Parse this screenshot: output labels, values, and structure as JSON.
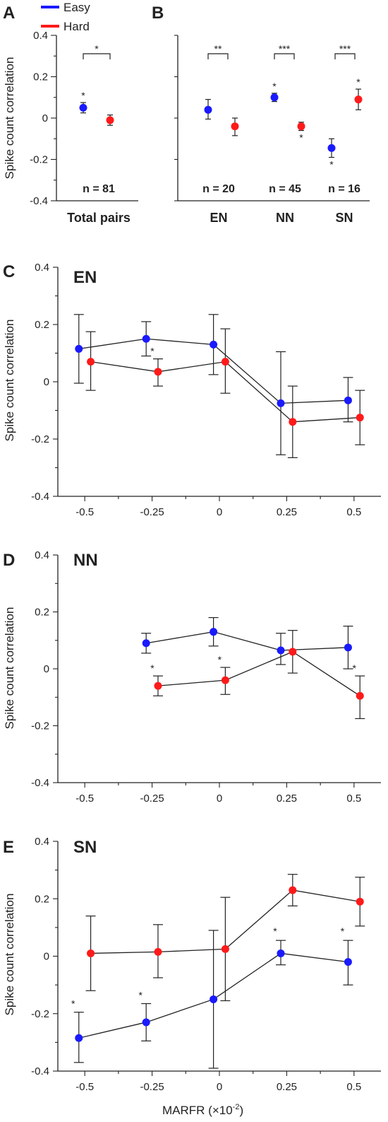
{
  "colors": {
    "easy": "#1a1aff",
    "hard": "#ff1a1a",
    "axis": "#222222"
  },
  "legend": [
    {
      "label": "Easy",
      "color": "#1a1aff"
    },
    {
      "label": "Hard",
      "color": "#ff1a1a"
    }
  ],
  "panels": {
    "A": {
      "letter": "A"
    },
    "B": {
      "letter": "B"
    },
    "C": {
      "letter": "C",
      "title": "EN"
    },
    "D": {
      "letter": "D",
      "title": "NN"
    },
    "E": {
      "letter": "E",
      "title": "SN"
    }
  },
  "chart_data": [
    {
      "id": "A",
      "type": "scatter",
      "ylabel": "Spike count correlation",
      "ylim": [
        -0.4,
        0.4
      ],
      "yticks": [
        "0.4",
        "0.2",
        "0",
        "-0.2",
        "-0.4"
      ],
      "categories": [
        "Total pairs"
      ],
      "n_labels": [
        "n = 81"
      ],
      "significance": [
        "*"
      ],
      "series": [
        {
          "name": "Easy",
          "values": [
            0.05
          ],
          "err_low": [
            0.025
          ],
          "err_high": [
            0.075
          ],
          "marks": [
            [
              "*",
              "above"
            ]
          ]
        },
        {
          "name": "Hard",
          "values": [
            -0.01
          ],
          "err_low": [
            -0.035
          ],
          "err_high": [
            0.015
          ],
          "marks": [
            []
          ]
        }
      ]
    },
    {
      "id": "B",
      "type": "scatter",
      "ylim": [
        -0.4,
        0.4
      ],
      "categories": [
        "EN",
        "NN",
        "SN"
      ],
      "n_labels": [
        "n = 20",
        "n = 45",
        "n = 16"
      ],
      "significance": [
        "**",
        "***",
        "***"
      ],
      "series": [
        {
          "name": "Easy",
          "values": [
            0.04,
            0.1,
            -0.145
          ],
          "err_low": [
            -0.005,
            0.08,
            -0.19
          ],
          "err_high": [
            0.09,
            0.12,
            -0.1
          ],
          "marks": [
            [],
            [
              "*",
              "above"
            ],
            [
              "*",
              "below"
            ]
          ]
        },
        {
          "name": "Hard",
          "values": [
            -0.04,
            -0.04,
            0.09
          ],
          "err_low": [
            -0.085,
            -0.06,
            0.04
          ],
          "err_high": [
            0.0,
            -0.02,
            0.14
          ],
          "marks": [
            [],
            [
              "*",
              "below"
            ],
            [
              "*",
              "above"
            ]
          ]
        }
      ]
    },
    {
      "id": "C",
      "type": "line",
      "ylabel": "Spike count correlation",
      "ylim": [
        -0.4,
        0.4
      ],
      "yticks": [
        "0.4",
        "0.2",
        "0",
        "-0.2",
        "-0.4"
      ],
      "xlim": [
        -0.6,
        0.6
      ],
      "xticks": [
        -0.5,
        -0.25,
        0,
        0.25,
        0.5
      ],
      "xtick_labels": [
        "-0.5",
        "-0.25",
        "0",
        "0.25",
        "0.5"
      ],
      "series": [
        {
          "name": "Easy",
          "x": [
            -0.5,
            -0.25,
            0,
            0.25,
            0.5
          ],
          "y": [
            0.115,
            0.15,
            0.13,
            -0.075,
            -0.065
          ],
          "err_low": [
            -0.005,
            0.09,
            0.025,
            -0.255,
            -0.14
          ],
          "err_high": [
            0.235,
            0.21,
            0.235,
            0.105,
            0.015
          ],
          "stars": [
            0,
            0,
            0,
            0,
            0
          ]
        },
        {
          "name": "Hard",
          "x": [
            -0.5,
            -0.25,
            0,
            0.25,
            0.5
          ],
          "y": [
            0.07,
            0.035,
            0.07,
            -0.14,
            -0.125
          ],
          "err_low": [
            -0.03,
            -0.015,
            -0.04,
            -0.265,
            -0.22
          ],
          "err_high": [
            0.175,
            0.08,
            0.185,
            -0.015,
            -0.03
          ],
          "stars": [
            0,
            1,
            0,
            0,
            0
          ]
        }
      ]
    },
    {
      "id": "D",
      "type": "line",
      "ylabel": "Spike count correlation",
      "ylim": [
        -0.4,
        0.4
      ],
      "yticks": [
        "0.4",
        "0.2",
        "0",
        "-0.2",
        "-0.4"
      ],
      "xlim": [
        -0.6,
        0.6
      ],
      "xticks": [
        -0.5,
        -0.25,
        0,
        0.25,
        0.5
      ],
      "xtick_labels": [
        "-0.5",
        "-0.25",
        "0",
        "0.25",
        "0.5"
      ],
      "series": [
        {
          "name": "Easy",
          "x": [
            -0.25,
            0,
            0.25,
            0.5
          ],
          "y": [
            0.09,
            0.13,
            0.065,
            0.075
          ],
          "err_low": [
            0.055,
            0.08,
            0.015,
            0.0
          ],
          "err_high": [
            0.125,
            0.18,
            0.125,
            0.15
          ],
          "stars": [
            0,
            0,
            0,
            0
          ]
        },
        {
          "name": "Hard",
          "x": [
            -0.25,
            0,
            0.25,
            0.5
          ],
          "y": [
            -0.06,
            -0.04,
            0.06,
            -0.095
          ],
          "err_low": [
            -0.095,
            -0.09,
            -0.015,
            -0.175
          ],
          "err_high": [
            -0.025,
            0.005,
            0.135,
            -0.025
          ],
          "stars": [
            1,
            1,
            0,
            1
          ]
        }
      ]
    },
    {
      "id": "E",
      "type": "line",
      "ylabel": "Spike count correlation",
      "xlabel": "MARFR (×10",
      "xlabel_sup": "-2",
      "xlabel_end": ")",
      "ylim": [
        -0.4,
        0.4
      ],
      "yticks": [
        "0.4",
        "0.2",
        "0",
        "-0.2",
        "-0.4"
      ],
      "xlim": [
        -0.6,
        0.6
      ],
      "xticks": [
        -0.5,
        -0.25,
        0,
        0.25,
        0.5
      ],
      "xtick_labels": [
        "-0.5",
        "-0.25",
        "0",
        "0.25",
        "0.5"
      ],
      "series": [
        {
          "name": "Easy",
          "x": [
            -0.5,
            -0.25,
            0,
            0.25,
            0.5
          ],
          "y": [
            -0.285,
            -0.23,
            -0.15,
            0.01,
            -0.02
          ],
          "err_low": [
            -0.37,
            -0.295,
            -0.39,
            -0.03,
            -0.1
          ],
          "err_high": [
            -0.195,
            -0.165,
            0.09,
            0.055,
            0.055
          ],
          "stars": [
            1,
            1,
            0,
            1,
            1
          ]
        },
        {
          "name": "Hard",
          "x": [
            -0.5,
            -0.25,
            0,
            0.25,
            0.5
          ],
          "y": [
            0.01,
            0.015,
            0.025,
            0.23,
            0.19
          ],
          "err_low": [
            -0.12,
            -0.075,
            -0.155,
            0.175,
            0.105
          ],
          "err_high": [
            0.14,
            0.11,
            0.205,
            0.285,
            0.275
          ],
          "stars": [
            0,
            0,
            0,
            0,
            0
          ]
        }
      ]
    }
  ]
}
